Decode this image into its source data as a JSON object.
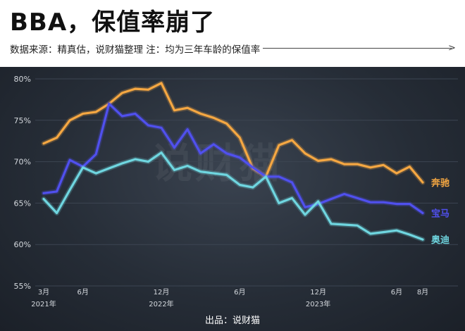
{
  "header": {
    "title": "BBA，保值率崩了",
    "subtitle": "数据来源：精真估，说财猫整理  注：均为三年车龄的保值率"
  },
  "watermark": "说财猫",
  "footer": "出品：说财猫",
  "colors": {
    "background": "#262d37",
    "grid": "#3c4552",
    "axis_text": "#d5d9de",
    "benz": "#f5a742",
    "bmw": "#5050ee",
    "audi": "#6fd6e0"
  },
  "chart_data": {
    "type": "line",
    "title": "BBA，保值率崩了",
    "xlabel": "",
    "ylabel": "",
    "ylim": [
      55,
      80
    ],
    "y_ticks": [
      55,
      60,
      65,
      70,
      75,
      80
    ],
    "y_tick_labels": [
      "55%",
      "60%",
      "65%",
      "70%",
      "75%",
      "80%"
    ],
    "x": [
      "2021-03",
      "2021-04",
      "2021-05",
      "2021-06",
      "2021-07",
      "2021-08",
      "2021-09",
      "2021-10",
      "2021-11",
      "2021-12",
      "2022-01",
      "2022-02",
      "2022-03",
      "2022-04",
      "2022-05",
      "2022-06",
      "2022-07",
      "2022-08",
      "2022-09",
      "2022-10",
      "2022-11",
      "2022-12",
      "2023-01",
      "2023-02",
      "2023-03",
      "2023-04",
      "2023-05",
      "2023-06",
      "2023-07",
      "2023-08"
    ],
    "x_tick_labels": [
      {
        "x": "2021-03",
        "label": "3月",
        "year": "2021年"
      },
      {
        "x": "2021-06",
        "label": "6月",
        "year": ""
      },
      {
        "x": "2021-12",
        "label": "12月",
        "year": "2022年"
      },
      {
        "x": "2022-06",
        "label": "6月",
        "year": ""
      },
      {
        "x": "2022-12",
        "label": "12月",
        "year": "2023年"
      },
      {
        "x": "2023-06",
        "label": "6月",
        "year": ""
      },
      {
        "x": "2023-08",
        "label": "8月",
        "year": ""
      }
    ],
    "grid": true,
    "legend": "end-of-line labels on the right",
    "series": [
      {
        "name": "奔驰",
        "color": "#f5a742",
        "values": [
          72.2,
          72.9,
          75.0,
          75.8,
          76.0,
          77.0,
          78.3,
          78.8,
          78.7,
          79.5,
          76.2,
          76.5,
          75.8,
          75.3,
          74.6,
          72.9,
          69.2,
          68.2,
          72.0,
          72.6,
          71.0,
          70.1,
          70.3,
          69.7,
          69.7,
          69.3,
          69.6,
          68.6,
          69.4,
          67.5
        ]
      },
      {
        "name": "宝马",
        "color": "#5050ee",
        "values": [
          66.2,
          66.4,
          70.2,
          69.4,
          70.9,
          77.0,
          75.5,
          75.8,
          74.4,
          74.1,
          71.7,
          73.9,
          71.0,
          72.1,
          71.0,
          70.5,
          69.3,
          68.2,
          68.2,
          67.5,
          64.5,
          64.9,
          65.5,
          66.1,
          65.6,
          65.1,
          65.1,
          64.9,
          64.9,
          63.8
        ]
      },
      {
        "name": "奥迪",
        "color": "#6fd6e0",
        "values": [
          65.5,
          63.8,
          66.6,
          69.3,
          68.6,
          69.2,
          69.8,
          70.3,
          70.0,
          71.1,
          69.0,
          69.5,
          68.8,
          68.6,
          68.4,
          67.2,
          66.9,
          68.2,
          65.0,
          65.6,
          63.6,
          65.2,
          62.5,
          62.4,
          62.3,
          61.3,
          61.5,
          61.7,
          61.2,
          60.6
        ]
      }
    ]
  }
}
